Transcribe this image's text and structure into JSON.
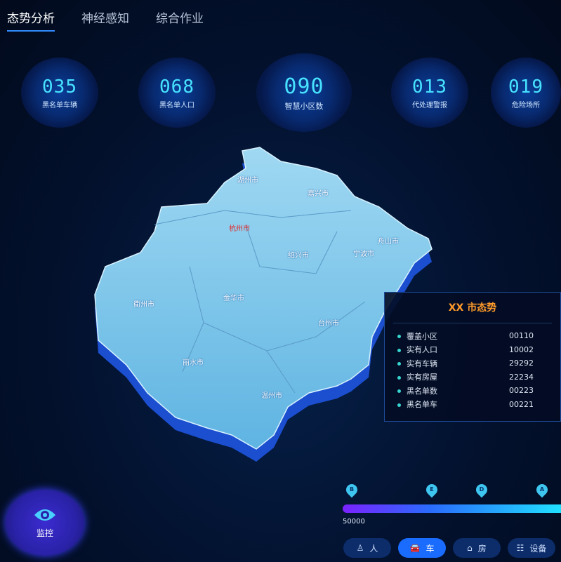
{
  "tabs": [
    {
      "label": "态势分析",
      "active": true
    },
    {
      "label": "神经感知"
    },
    {
      "label": "综合作业"
    }
  ],
  "stats": [
    {
      "value": "035",
      "label": "黑名单车辆"
    },
    {
      "value": "068",
      "label": "黑名单人口"
    },
    {
      "value": "090",
      "label": "智慧小区数"
    },
    {
      "value": "013",
      "label": "代处理警报"
    },
    {
      "value": "019",
      "label": "危险场所"
    }
  ],
  "map": {
    "cities": [
      {
        "name": "湖州市"
      },
      {
        "name": "嘉兴市"
      },
      {
        "name": "杭州市",
        "highlight": "#e03030"
      },
      {
        "name": "舟山市"
      },
      {
        "name": "绍兴市"
      },
      {
        "name": "宁波市"
      },
      {
        "name": "衢州市"
      },
      {
        "name": "金华市"
      },
      {
        "name": "台州市"
      },
      {
        "name": "丽水市"
      },
      {
        "name": "温州市"
      }
    ]
  },
  "panel": {
    "title": "XX 市态势",
    "rows": [
      {
        "label": "覆盖小区",
        "value": "00110"
      },
      {
        "label": "实有人口",
        "value": "10002"
      },
      {
        "label": "实有车辆",
        "value": "29292"
      },
      {
        "label": "实有房屋",
        "value": "22234"
      },
      {
        "label": "黑名单数",
        "value": "00223"
      },
      {
        "label": "黑名单车",
        "value": "00221"
      }
    ]
  },
  "monitor": {
    "label": "监控",
    "icon": "eye-icon"
  },
  "timeline": {
    "markers": [
      "B",
      "E",
      "D",
      "A"
    ],
    "value_label": "50000"
  },
  "filters": [
    {
      "label": "人",
      "icon": "person-icon"
    },
    {
      "label": "车",
      "icon": "car-icon",
      "active": true
    },
    {
      "label": "房",
      "icon": "house-icon"
    },
    {
      "label": "设备",
      "icon": "device-icon"
    }
  ]
}
